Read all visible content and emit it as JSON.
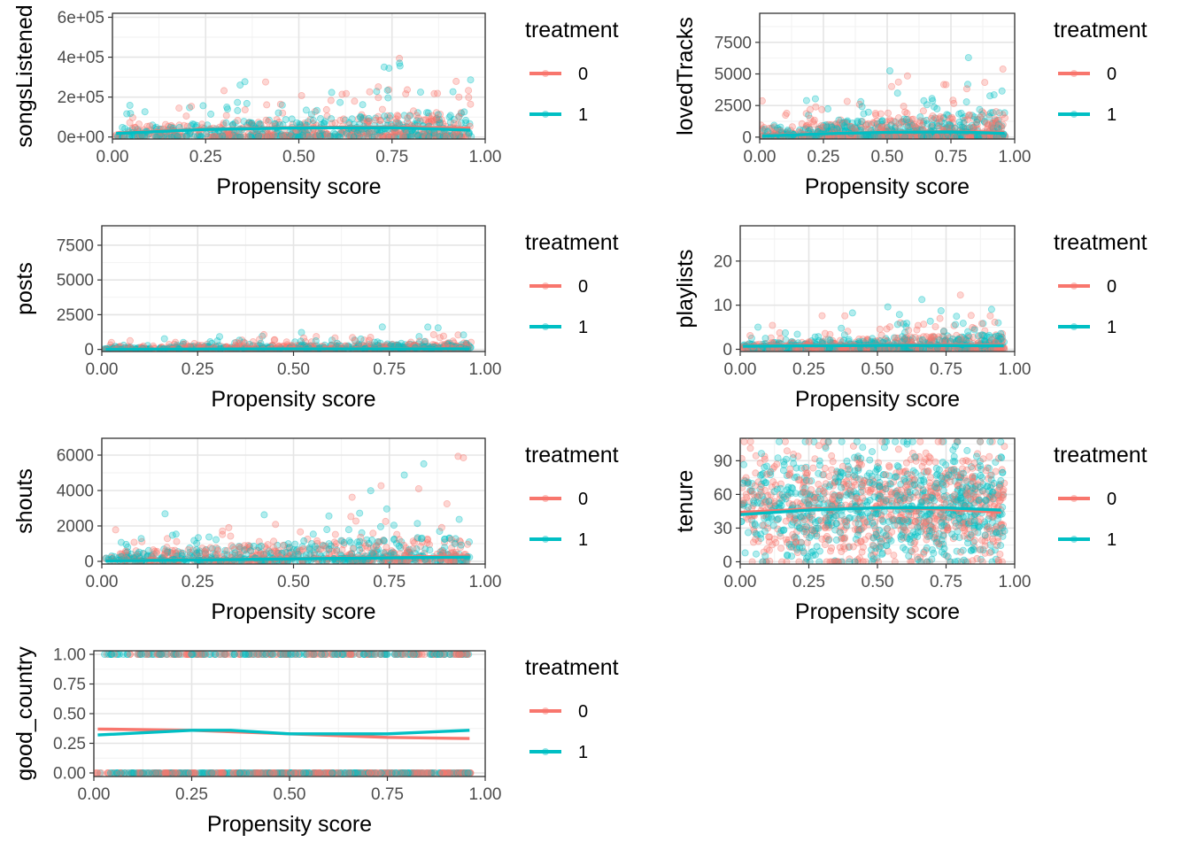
{
  "figure": {
    "x_label": "Propensity score",
    "legend_title": "treatment",
    "legend_levels": [
      "0",
      "1"
    ],
    "colors": {
      "0": "#F8766D",
      "1": "#00BFC4"
    }
  },
  "chart_data": [
    {
      "type": "scatter",
      "id": "songsListened",
      "ylabel": "songsListened",
      "xlabel": "Propensity score",
      "xlim": [
        0,
        1
      ],
      "ylim": [
        -10000,
        620000
      ],
      "x_ticks": [
        0,
        0.25,
        0.5,
        0.75,
        1
      ],
      "x_tick_labels": [
        "0.00",
        "0.25",
        "0.50",
        "0.75",
        "1.00"
      ],
      "y_ticks": [
        0,
        200000,
        400000,
        600000
      ],
      "y_tick_labels": [
        "0e+00",
        "2e+05",
        "4e+05",
        "6e+05"
      ],
      "series": [
        {
          "name": "0",
          "smooth": [
            [
              0.01,
              20000
            ],
            [
              0.25,
              40000
            ],
            [
              0.5,
              48000
            ],
            [
              0.75,
              50000
            ],
            [
              0.96,
              45000
            ]
          ]
        },
        {
          "name": "1",
          "smooth": [
            [
              0.01,
              18000
            ],
            [
              0.25,
              38000
            ],
            [
              0.5,
              46000
            ],
            [
              0.75,
              47000
            ],
            [
              0.96,
              35000
            ]
          ]
        }
      ]
    },
    {
      "type": "scatter",
      "id": "lovedTracks",
      "ylabel": "lovedTracks",
      "xlabel": "Propensity score",
      "xlim": [
        0,
        1
      ],
      "ylim": [
        -150,
        9800
      ],
      "x_ticks": [
        0,
        0.25,
        0.5,
        0.75,
        1
      ],
      "x_tick_labels": [
        "0.00",
        "0.25",
        "0.50",
        "0.75",
        "1.00"
      ],
      "y_ticks": [
        0,
        2500,
        5000,
        7500
      ],
      "y_tick_labels": [
        "0",
        "2500",
        "5000",
        "7500"
      ],
      "series": [
        {
          "name": "0",
          "smooth": [
            [
              0.01,
              100
            ],
            [
              0.25,
              280
            ],
            [
              0.5,
              400
            ],
            [
              0.75,
              430
            ],
            [
              0.96,
              380
            ]
          ]
        },
        {
          "name": "1",
          "smooth": [
            [
              0.01,
              80
            ],
            [
              0.25,
              260
            ],
            [
              0.5,
              380
            ],
            [
              0.75,
              410
            ],
            [
              0.96,
              300
            ]
          ]
        }
      ]
    },
    {
      "type": "scatter",
      "id": "posts",
      "ylabel": "posts",
      "xlabel": "Propensity score",
      "xlim": [
        0,
        1
      ],
      "ylim": [
        -150,
        8900
      ],
      "x_ticks": [
        0,
        0.25,
        0.5,
        0.75,
        1
      ],
      "x_tick_labels": [
        "0.00",
        "0.25",
        "0.50",
        "0.75",
        "1.00"
      ],
      "y_ticks": [
        0,
        2500,
        5000,
        7500
      ],
      "y_tick_labels": [
        "0",
        "2500",
        "5000",
        "7500"
      ],
      "series": [
        {
          "name": "0",
          "smooth": [
            [
              0.01,
              20
            ],
            [
              0.5,
              40
            ],
            [
              0.96,
              60
            ]
          ]
        },
        {
          "name": "1",
          "smooth": [
            [
              0.01,
              15
            ],
            [
              0.5,
              35
            ],
            [
              0.96,
              50
            ]
          ]
        }
      ]
    },
    {
      "type": "scatter",
      "id": "playlists",
      "ylabel": "playlists",
      "xlabel": "Propensity score",
      "xlim": [
        0,
        1
      ],
      "ylim": [
        -0.5,
        28
      ],
      "x_ticks": [
        0,
        0.25,
        0.5,
        0.75,
        1
      ],
      "x_tick_labels": [
        "0.00",
        "0.25",
        "0.50",
        "0.75",
        "1.00"
      ],
      "y_ticks": [
        0,
        10,
        20
      ],
      "y_tick_labels": [
        "0",
        "10",
        "20"
      ],
      "series": [
        {
          "name": "0",
          "smooth": [
            [
              0.01,
              0.8
            ],
            [
              0.5,
              1.0
            ],
            [
              0.96,
              1.0
            ]
          ]
        },
        {
          "name": "1",
          "smooth": [
            [
              0.01,
              0.7
            ],
            [
              0.5,
              0.9
            ],
            [
              0.96,
              0.8
            ]
          ]
        }
      ]
    },
    {
      "type": "scatter",
      "id": "shouts",
      "ylabel": "shouts",
      "xlabel": "Propensity score",
      "xlim": [
        0,
        1
      ],
      "ylim": [
        -150,
        6950
      ],
      "x_ticks": [
        0,
        0.25,
        0.5,
        0.75,
        1
      ],
      "x_tick_labels": [
        "0.00",
        "0.25",
        "0.50",
        "0.75",
        "1.00"
      ],
      "y_ticks": [
        0,
        2000,
        4000,
        6000
      ],
      "y_tick_labels": [
        "0",
        "2000",
        "4000",
        "6000"
      ],
      "series": [
        {
          "name": "0",
          "smooth": [
            [
              0.01,
              40
            ],
            [
              0.25,
              90
            ],
            [
              0.5,
              150
            ],
            [
              0.75,
              220
            ],
            [
              0.96,
              300
            ]
          ]
        },
        {
          "name": "1",
          "smooth": [
            [
              0.01,
              30
            ],
            [
              0.25,
              80
            ],
            [
              0.5,
              140
            ],
            [
              0.75,
              200
            ],
            [
              0.96,
              240
            ]
          ]
        }
      ]
    },
    {
      "type": "scatter",
      "id": "tenure",
      "ylabel": "tenure",
      "xlabel": "Propensity score",
      "xlim": [
        0,
        1
      ],
      "ylim": [
        -2,
        110
      ],
      "x_ticks": [
        0,
        0.25,
        0.5,
        0.75,
        1
      ],
      "x_tick_labels": [
        "0.00",
        "0.25",
        "0.50",
        "0.75",
        "1.00"
      ],
      "y_ticks": [
        0,
        30,
        60,
        90
      ],
      "y_tick_labels": [
        "0",
        "30",
        "60",
        "90"
      ],
      "series": [
        {
          "name": "0",
          "smooth": [
            [
              0.0,
              44
            ],
            [
              0.25,
              47
            ],
            [
              0.5,
              48
            ],
            [
              0.75,
              47
            ],
            [
              0.95,
              44
            ]
          ]
        },
        {
          "name": "1",
          "smooth": [
            [
              0.0,
              42
            ],
            [
              0.25,
              46
            ],
            [
              0.5,
              48
            ],
            [
              0.75,
              48
            ],
            [
              0.95,
              46
            ]
          ]
        }
      ]
    },
    {
      "type": "scatter",
      "id": "good_country",
      "ylabel": "good_country",
      "xlabel": "Propensity score",
      "xlim": [
        0,
        1
      ],
      "ylim": [
        -0.03,
        1.03
      ],
      "x_ticks": [
        0,
        0.25,
        0.5,
        0.75,
        1
      ],
      "x_tick_labels": [
        "0.00",
        "0.25",
        "0.50",
        "0.75",
        "1.00"
      ],
      "y_ticks": [
        0,
        0.25,
        0.5,
        0.75,
        1
      ],
      "y_tick_labels": [
        "0.00",
        "0.25",
        "0.50",
        "0.75",
        "1.00"
      ],
      "series": [
        {
          "name": "0",
          "smooth": [
            [
              0.01,
              0.37
            ],
            [
              0.25,
              0.36
            ],
            [
              0.5,
              0.33
            ],
            [
              0.75,
              0.3
            ],
            [
              0.96,
              0.29
            ]
          ]
        },
        {
          "name": "1",
          "smooth": [
            [
              0.01,
              0.32
            ],
            [
              0.25,
              0.36
            ],
            [
              0.35,
              0.36
            ],
            [
              0.5,
              0.33
            ],
            [
              0.75,
              0.33
            ],
            [
              0.96,
              0.36
            ]
          ]
        }
      ]
    }
  ]
}
